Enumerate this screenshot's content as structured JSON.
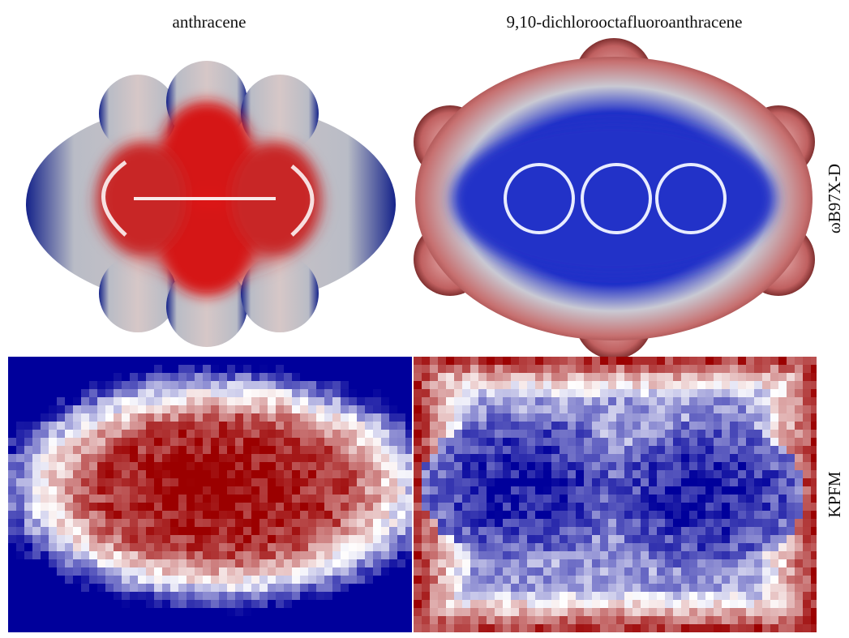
{
  "columns": [
    "anthracene",
    "9,10-dichlorooctafluoroanthracene"
  ],
  "rows": [
    "ωB97X-D",
    "KPFM"
  ]
}
